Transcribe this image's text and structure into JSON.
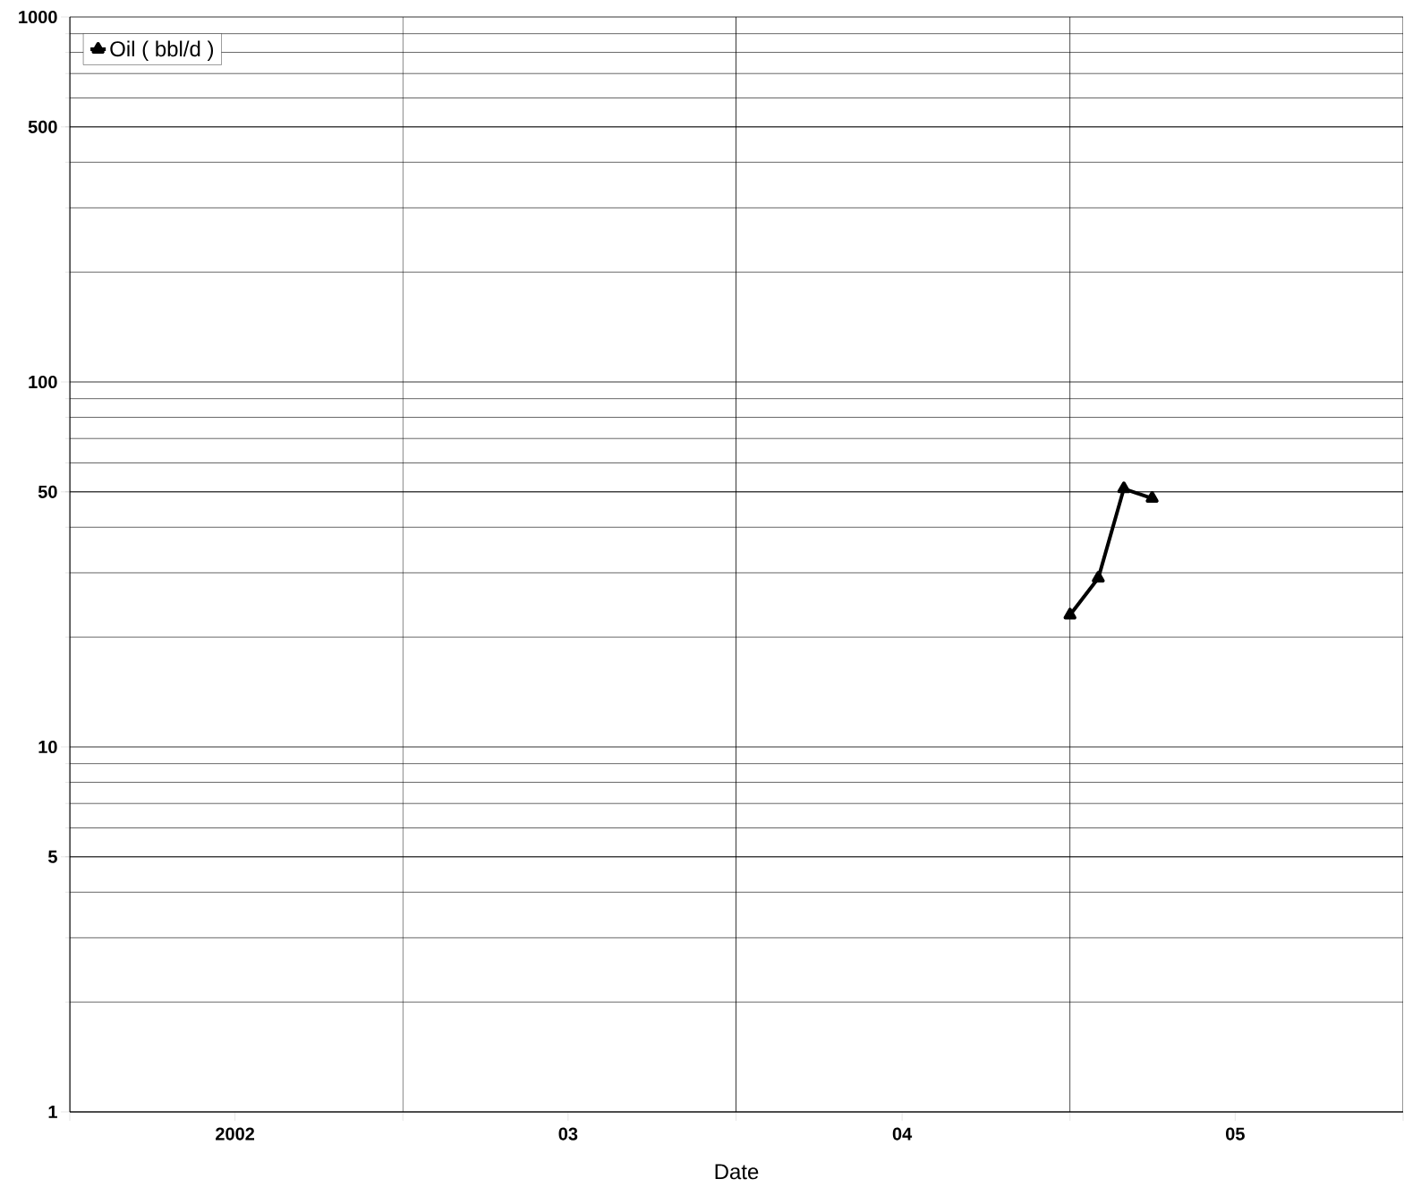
{
  "chart_data": {
    "type": "line",
    "xlabel": "Date",
    "x": [
      "2005-01",
      "2005-02",
      "2005-03",
      "2005-04"
    ],
    "series": [
      {
        "name": "Oil  ( bbl/d )",
        "color": "#000000",
        "values": [
          23,
          29,
          51,
          48
        ]
      }
    ],
    "xlim": [
      "2002-01",
      "2006-01"
    ],
    "xticks": [
      {
        "value": "2002-01",
        "label": null
      },
      {
        "value": "2002-07",
        "label": "2002"
      },
      {
        "value": "2003-01",
        "label": null
      },
      {
        "value": "2003-07",
        "label": "03"
      },
      {
        "value": "2004-01",
        "label": null
      },
      {
        "value": "2004-07",
        "label": "04"
      },
      {
        "value": "2005-01",
        "label": null
      },
      {
        "value": "2005-07",
        "label": "05"
      },
      {
        "value": "2006-01",
        "label": null
      }
    ],
    "ylim": [
      1,
      1000
    ],
    "yticks": [
      1,
      5,
      10,
      50,
      100,
      500,
      1000
    ],
    "log": "y",
    "grid": true,
    "legend": "top left",
    "marker": "triangle",
    "line_style": "solid"
  }
}
